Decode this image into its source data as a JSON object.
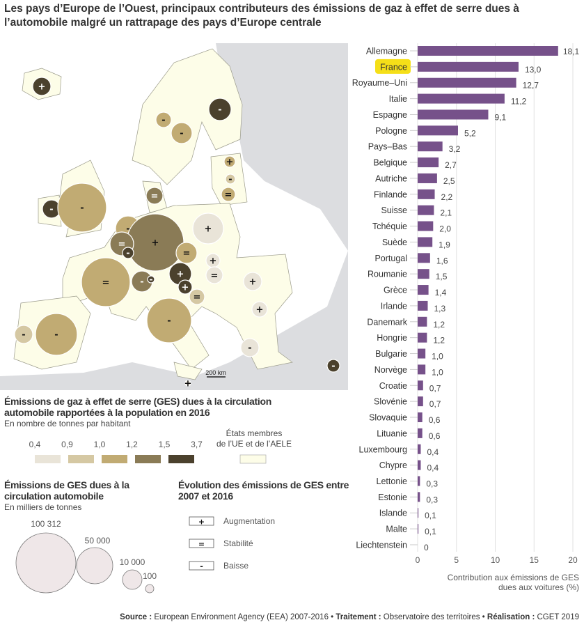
{
  "title": "Les pays d’Europe de l’Ouest, principaux contributeurs des émissions de gaz à effet de serre dues à l’automobile malgré un rattrapage des pays d’Europe centrale",
  "colors": {
    "bar": "#76518a",
    "highlight": "#f5df18",
    "land": "#fdfde8",
    "nonmember": "#dcdde0"
  },
  "chart_data": [
    {
      "type": "bar",
      "orientation": "horizontal",
      "categories": [
        "Allemagne",
        "France",
        "Royaume–Uni",
        "Italie",
        "Espagne",
        "Pologne",
        "Pays–Bas",
        "Belgique",
        "Autriche",
        "Finlande",
        "Suisse",
        "Tchéquie",
        "Suède",
        "Portugal",
        "Roumanie",
        "Grèce",
        "Irlande",
        "Danemark",
        "Hongrie",
        "Bulgarie",
        "Norvège",
        "Croatie",
        "Slovénie",
        "Slovaquie",
        "Lituanie",
        "Luxembourg",
        "Chypre",
        "Lettonie",
        "Estonie",
        "Islande",
        "Malte",
        "Liechtenstein"
      ],
      "values": [
        18.1,
        13.0,
        12.7,
        11.2,
        9.1,
        5.2,
        3.2,
        2.7,
        2.5,
        2.2,
        2.1,
        2.0,
        1.9,
        1.6,
        1.5,
        1.4,
        1.3,
        1.2,
        1.2,
        1.0,
        1.0,
        0.7,
        0.7,
        0.6,
        0.6,
        0.4,
        0.4,
        0.3,
        0.3,
        0.1,
        0.1,
        0
      ],
      "labels": [
        "18,1",
        "13,0",
        "12,7",
        "11,2",
        "9,1",
        "5,2",
        "3,2",
        "2,7",
        "2,5",
        "2,2",
        "2,1",
        "2,0",
        "1,9",
        "1,6",
        "1,5",
        "1,4",
        "1,3",
        "1,2",
        "1,2",
        "1,0",
        "1,0",
        "0,7",
        "0,7",
        "0,6",
        "0,6",
        "0,4",
        "0,4",
        "0,3",
        "0,3",
        "0,1",
        "0,1",
        "0"
      ],
      "highlighted": "France",
      "xlim": [
        0,
        20
      ],
      "xticks": [
        "0",
        "5",
        "10",
        "15",
        "20"
      ],
      "xlabel": "Contribution aux émissions de GES dues aux voitures (%)",
      "xlabel_lines": [
        "Contribution aux émissions de GES",
        "dues aux voitures (%)"
      ],
      "grid": true
    },
    {
      "type": "proportional-symbol-map",
      "symbols": [
        {
          "country": "Islande",
          "class": 4,
          "trend": "+"
        },
        {
          "country": "Finlande",
          "class": 4,
          "trend": "-"
        },
        {
          "country": "Norvège",
          "class": 2,
          "trend": "-"
        },
        {
          "country": "Suède",
          "class": 2,
          "trend": "-"
        },
        {
          "country": "Estonie",
          "class": 2,
          "trend": "+"
        },
        {
          "country": "Lettonie",
          "class": 1,
          "trend": "-"
        },
        {
          "country": "Lituanie",
          "class": 2,
          "trend": "="
        },
        {
          "country": "Danemark",
          "class": 3,
          "trend": "="
        },
        {
          "country": "Irlande",
          "class": 4,
          "trend": "-"
        },
        {
          "country": "Royaume–Uni",
          "class": 2,
          "trend": "-"
        },
        {
          "country": "Pologne",
          "class": 0,
          "trend": "+"
        },
        {
          "country": "Pays–Bas",
          "class": 2,
          "trend": "-"
        },
        {
          "country": "Allemagne",
          "class": 3,
          "trend": "+"
        },
        {
          "country": "Belgique",
          "class": 3,
          "trend": "="
        },
        {
          "country": "Luxembourg",
          "class": 4,
          "trend": "-"
        },
        {
          "country": "Tchéquie",
          "class": 2,
          "trend": "="
        },
        {
          "country": "Slovaquie",
          "class": 0,
          "trend": "+"
        },
        {
          "country": "Hongrie",
          "class": 0,
          "trend": "="
        },
        {
          "country": "Autriche",
          "class": 4,
          "trend": "+"
        },
        {
          "country": "Slovénie",
          "class": 4,
          "trend": "+"
        },
        {
          "country": "Croatie",
          "class": 1,
          "trend": "="
        },
        {
          "country": "Suisse",
          "class": 3,
          "trend": "-"
        },
        {
          "country": "Liechtenstein",
          "class": 4,
          "trend": "-"
        },
        {
          "country": "France",
          "class": 2,
          "trend": "="
        },
        {
          "country": "Roumanie",
          "class": 0,
          "trend": "+"
        },
        {
          "country": "Bulgarie",
          "class": 0,
          "trend": "+"
        },
        {
          "country": "Italie",
          "class": 2,
          "trend": "-"
        },
        {
          "country": "Espagne",
          "class": 2,
          "trend": "-"
        },
        {
          "country": "Portugal",
          "class": 1,
          "trend": "-"
        },
        {
          "country": "Grèce",
          "class": 0,
          "trend": "-"
        },
        {
          "country": "Chypre",
          "class": 4,
          "trend": "-"
        },
        {
          "country": "Malte",
          "class": 0,
          "trend": "+"
        }
      ],
      "scale_label": "200 km"
    }
  ],
  "legend_intensity": {
    "title_lines": [
      "Émissions de gaz à effet de serre (GES) dues à la circulation",
      "automobile rapportées à la population en 2016"
    ],
    "subtitle": "En nombre de tonnes par habitant",
    "breaks": [
      "0,4",
      "0,9",
      "1,0",
      "1,2",
      "1,5",
      "3,7"
    ],
    "colors": [
      "#e9e4d8",
      "#d5c8a3",
      "#c1ab73",
      "#8a7b56",
      "#4b412d"
    ],
    "member_label_lines": [
      "États membres",
      "de l’UE et de l’AELE"
    ]
  },
  "legend_size": {
    "title_lines": [
      "Émissions de GES dues à la",
      "circulation automobile"
    ],
    "subtitle": "En milliers de tonnes",
    "values": [
      "100 312",
      "50 000",
      "10 000",
      "100"
    ],
    "fill": "#efe7e8"
  },
  "legend_trend": {
    "title_lines": [
      "Évolution des émissions de GES entre",
      "2007 et 2016"
    ],
    "items": [
      {
        "symbol": "+",
        "label": "Augmentation"
      },
      {
        "symbol": "=",
        "label": "Stabilité"
      },
      {
        "symbol": "-",
        "label": "Baisse"
      }
    ]
  },
  "source": {
    "source_label": "Source :",
    "source_text": " European Environment Agency (EEA) 2007-2016 • ",
    "treatment_label": "Traitement :",
    "treatment_text": " Observatoire des territoires • ",
    "realisation_label": "Réalisation :",
    "realisation_text": " CGET 2019"
  }
}
